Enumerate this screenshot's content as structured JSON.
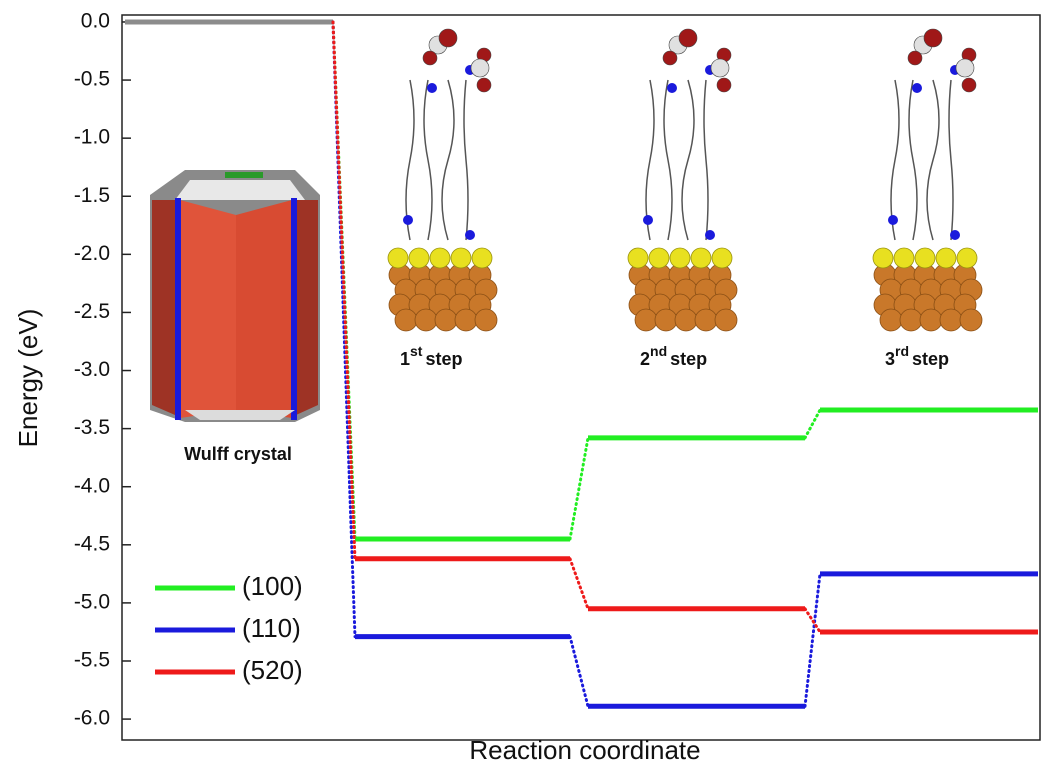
{
  "chart_data": {
    "type": "energy-diagram",
    "x_label": "Reaction coordinate",
    "y_label": "Energy (eV)",
    "ylim": [
      -6.18,
      0.06
    ],
    "yticks": [
      {
        "value": 0,
        "label": "0.0"
      },
      -0.5,
      {
        "value": -1,
        "label": "-1.0"
      },
      -1.5,
      {
        "value": -2,
        "label": "-2.0"
      },
      -2.5,
      {
        "value": -3,
        "label": "-3.0"
      },
      -3.5,
      {
        "value": -4,
        "label": "-4.0"
      },
      -4.5,
      {
        "value": -5,
        "label": "-5.0"
      },
      -5.5,
      {
        "value": -6,
        "label": "-6.0"
      }
    ],
    "initial": {
      "value": 0,
      "color": "#8c8c8c"
    },
    "series": [
      {
        "name": "(100)",
        "color": "#22ee22",
        "values": [
          -4.45,
          -3.58,
          -3.34
        ]
      },
      {
        "name": "(110)",
        "color": "#1a1adc",
        "values": [
          -5.29,
          -5.89,
          -4.75
        ]
      },
      {
        "name": "(520)",
        "color": "#ee1a1a",
        "values": [
          -4.62,
          -5.05,
          -5.25
        ]
      }
    ],
    "annotations": [
      {
        "text": "Wulff crystal"
      },
      {
        "base": "1",
        "sup": "st",
        "text": "step"
      },
      {
        "base": "2",
        "sup": "nd",
        "text": "step"
      },
      {
        "base": "3",
        "sup": "rd",
        "text": "step"
      }
    ]
  }
}
